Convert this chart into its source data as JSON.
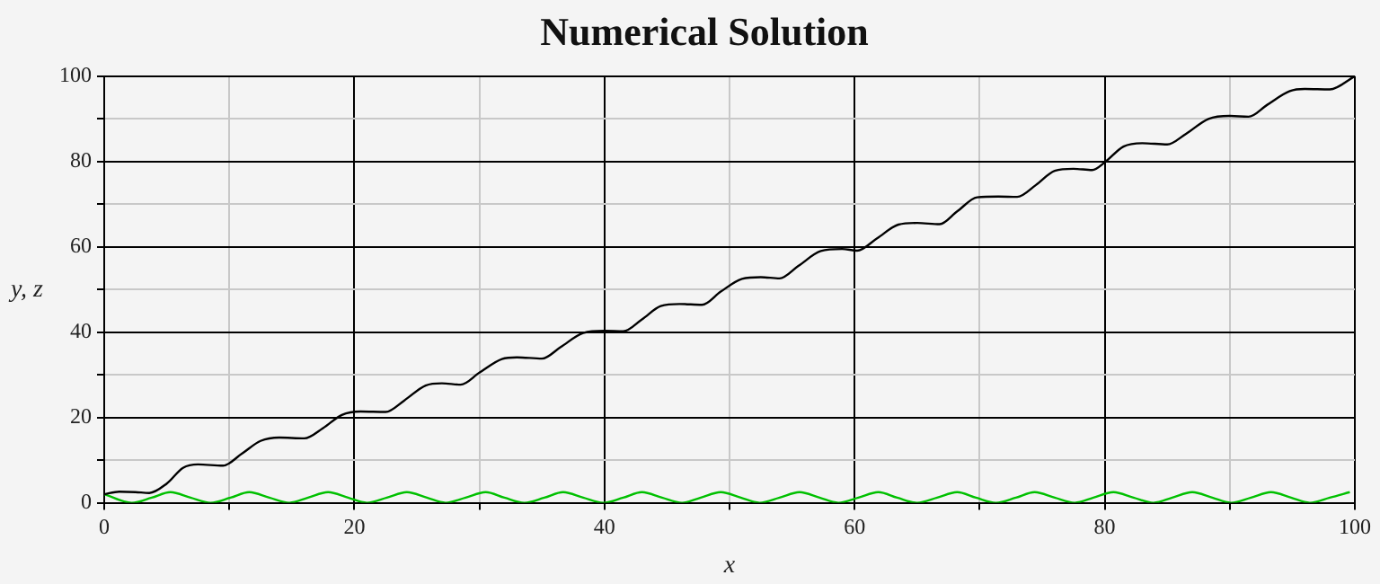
{
  "chart_data": {
    "type": "line",
    "title": "Numerical Solution",
    "xlabel": "x",
    "ylabel": "y, z",
    "xlim": [
      0,
      100
    ],
    "ylim": [
      0,
      100
    ],
    "xticks": [
      0,
      {
        "value": 10,
        "label": null
      },
      20,
      {
        "value": 30,
        "label": null
      },
      40,
      {
        "value": 50,
        "label": null
      },
      60,
      {
        "value": 70,
        "label": null
      },
      80,
      {
        "value": 90,
        "label": null
      },
      100
    ],
    "yticks": [
      0,
      {
        "value": 10,
        "label": null
      },
      20,
      {
        "value": 30,
        "label": null
      },
      40,
      {
        "value": 50,
        "label": null
      },
      60,
      {
        "value": 70,
        "label": null
      },
      80,
      {
        "value": 90,
        "label": null
      },
      100
    ],
    "grid": true,
    "legend": false,
    "marker": "none",
    "line_style": "solid",
    "series": [
      {
        "color": "#000000",
        "x": [
          0,
          1.2,
          2.5,
          3.6,
          5.0,
          6.3,
          7.5,
          9.5,
          11.0,
          12.5,
          14,
          16,
          17.5,
          19,
          20.5,
          22.5,
          24,
          25.7,
          27,
          28.5,
          30,
          31.8,
          33,
          35,
          36.5,
          38.3,
          40,
          41.5,
          43,
          44.5,
          46,
          47.8,
          49.3,
          51,
          52.5,
          54,
          55.5,
          57.3,
          59,
          60.2,
          61.8,
          63.5,
          65,
          66.8,
          68.2,
          69.8,
          71.5,
          73,
          74.5,
          76,
          77.5,
          79,
          80,
          81.5,
          83,
          85,
          86.5,
          88.3,
          90,
          91.5,
          93,
          94.8,
          96,
          98,
          100
        ],
        "values": [
          2.0,
          2.6,
          2.5,
          2.3,
          4.5,
          8.2,
          9.0,
          8.7,
          11.5,
          14.5,
          15.3,
          15.1,
          17.5,
          20.6,
          21.4,
          21.3,
          24,
          27.5,
          28.0,
          27.7,
          30.5,
          33.7,
          34.1,
          33.8,
          36.5,
          39.8,
          40.3,
          40.2,
          43,
          46.1,
          46.6,
          46.4,
          49.5,
          52.5,
          52.9,
          52.6,
          55.5,
          59,
          59.5,
          59.1,
          62,
          65.2,
          65.6,
          65.3,
          68.3,
          71.6,
          71.8,
          71.7,
          74.5,
          77.8,
          78.3,
          78,
          79.8,
          83.5,
          84.3,
          84,
          86.5,
          90,
          90.7,
          90.5,
          93.3,
          96.5,
          97,
          96.9,
          100
        ]
      },
      {
        "color": "#00c000",
        "x": [
          0,
          2.2,
          3.8,
          5.3,
          6.9,
          8.5,
          10.1,
          11.6,
          13.2,
          14.8,
          16.3,
          17.9,
          19.5,
          21.0,
          22.6,
          24.2,
          25.8,
          27.3,
          28.9,
          30.5,
          32.0,
          33.6,
          35.2,
          36.7,
          38.3,
          39.9,
          41.5,
          43.0,
          44.6,
          46.2,
          47.7,
          49.3,
          50.9,
          52.4,
          54.0,
          55.6,
          57.2,
          58.7,
          60.3,
          61.9,
          63.4,
          65.0,
          66.6,
          68.2,
          69.7,
          71.3,
          72.9,
          74.4,
          76.0,
          77.6,
          79.1,
          80.7,
          82.3,
          83.9,
          85.4,
          87.0,
          88.6,
          90.1,
          91.7,
          93.3,
          94.9,
          96.4,
          98.0,
          99.6
        ],
        "values": [
          2,
          0,
          1.2,
          2.5,
          1.2,
          0,
          1.2,
          2.5,
          1.2,
          0,
          1.2,
          2.5,
          1.2,
          0,
          1.2,
          2.5,
          1.2,
          0,
          1.2,
          2.5,
          1.2,
          0,
          1.2,
          2.5,
          1.2,
          0,
          1.2,
          2.5,
          1.2,
          0,
          1.2,
          2.5,
          1.2,
          0,
          1.2,
          2.5,
          1.2,
          0,
          1.2,
          2.5,
          1.2,
          0,
          1.2,
          2.5,
          1.2,
          0,
          1.2,
          2.5,
          1.2,
          0,
          1.2,
          2.5,
          1.2,
          0,
          1.2,
          2.5,
          1.2,
          0,
          1.2,
          2.5,
          1.2,
          0,
          1.2,
          2.5
        ]
      }
    ]
  }
}
